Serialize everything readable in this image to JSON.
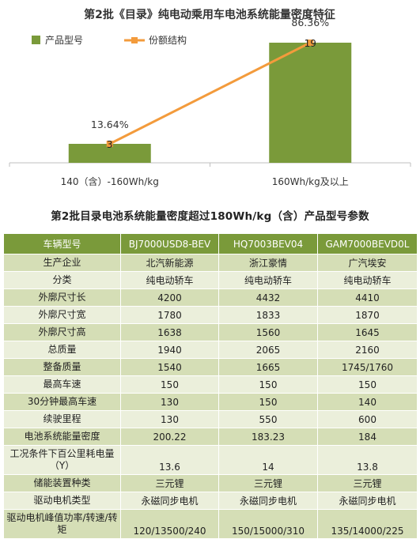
{
  "chart_data": {
    "type": "bar",
    "title": "第2批《目录》纯电动乘用车电池系统能量密度特征",
    "categories": [
      "140（含）-160Wh/kg",
      "160Wh/kg及以上"
    ],
    "series": [
      {
        "name": "产品型号",
        "type": "bar",
        "color": "#7a9a3a",
        "values": [
          3,
          19
        ],
        "data_labels": [
          "3",
          "19"
        ]
      },
      {
        "name": "份额结构",
        "type": "line",
        "color": "#f39b3c",
        "values": [
          13.64,
          86.36
        ],
        "data_labels": [
          "13.64%",
          "86.36%"
        ]
      }
    ],
    "ylim": [
      0,
      22
    ],
    "grid": false,
    "legend": "top-left"
  },
  "table": {
    "title": "第2批目录电池系统能量密度超过180Wh/kg（含）产品型号参数",
    "headers": [
      "车辆型号",
      "BJ7000USD8-BEV",
      "HQ7003BEV04",
      "GAM7000BEVD0L"
    ],
    "rows": [
      {
        "label": "生产企业",
        "values": [
          "北汽新能源",
          "浙江豪情",
          "广汽埃安"
        ]
      },
      {
        "label": "分类",
        "values": [
          "纯电动轿车",
          "纯电动轿车",
          "纯电动轿车"
        ]
      },
      {
        "label": "外廓尺寸长",
        "values": [
          "4200",
          "4432",
          "4410"
        ]
      },
      {
        "label": "外廓尺寸宽",
        "values": [
          "1780",
          "1833",
          "1870"
        ]
      },
      {
        "label": "外廓尺寸高",
        "values": [
          "1638",
          "1560",
          "1645"
        ]
      },
      {
        "label": "总质量",
        "values": [
          "1940",
          "2065",
          "2160"
        ]
      },
      {
        "label": "整备质量",
        "values": [
          "1540",
          "1665",
          "1745/1760"
        ]
      },
      {
        "label": "最高车速",
        "values": [
          "150",
          "150",
          "150"
        ]
      },
      {
        "label": "30分钟最高车速",
        "values": [
          "130",
          "150",
          "140"
        ]
      },
      {
        "label": "续驶里程",
        "values": [
          "130",
          "550",
          "600"
        ]
      },
      {
        "label": "电池系统能量密度",
        "values": [
          "200.22",
          "183.23",
          "184"
        ]
      },
      {
        "label": "工况条件下百公里耗电量（Y）",
        "values": [
          "13.6",
          "14",
          "13.8"
        ]
      },
      {
        "label": "储能装置种类",
        "values": [
          "三元锂",
          "三元锂",
          "三元锂"
        ]
      },
      {
        "label": "驱动电机类型",
        "values": [
          "永磁同步电机",
          "永磁同步电机",
          "永磁同步电机"
        ]
      },
      {
        "label": "驱动电机峰值功率/转速/转矩",
        "values": [
          "120/13500/240",
          "150/15000/310",
          "135/14000/225"
        ]
      }
    ]
  }
}
